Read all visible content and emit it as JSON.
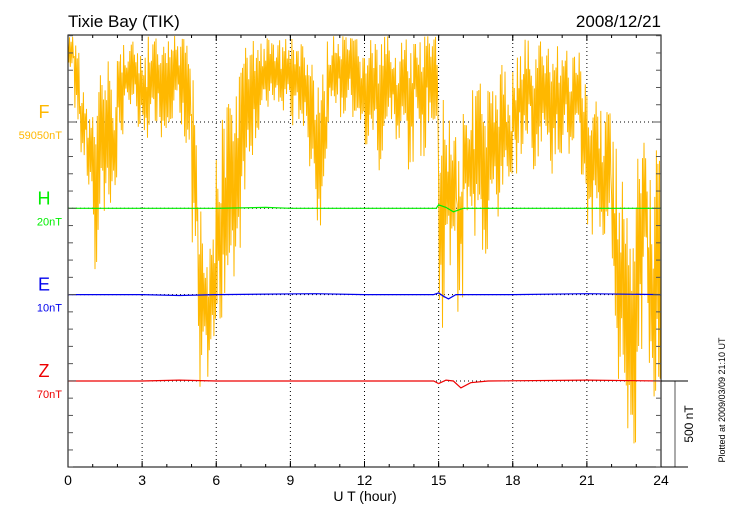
{
  "chart_data": {
    "type": "line",
    "title_left": "Tixie Bay (TIK)",
    "title_right": "2008/12/21",
    "xlabel": "U T (hour)",
    "xlim": [
      0,
      24
    ],
    "xticks": [
      "0",
      "3",
      "6",
      "9",
      "12",
      "15",
      "18",
      "21",
      "24"
    ],
    "scale_bar_label": "500 nT",
    "scale_bar_nT": 500,
    "plotted_note": "Plotted at 2009/03/09 21:10 UT",
    "units_per_axis_tick_nT": 100,
    "series": [
      {
        "name": "F",
        "baseline_label": "59050nT",
        "color": "#ffb800",
        "step_hours": 0.25,
        "ranges": [
          [
            300,
            500
          ],
          [
            0,
            500
          ],
          [
            -200,
            200
          ],
          [
            -400,
            100
          ],
          [
            -950,
            100
          ],
          [
            -600,
            300
          ],
          [
            -500,
            400
          ],
          [
            -450,
            200
          ],
          [
            -100,
            450
          ],
          [
            0,
            500
          ],
          [
            100,
            500
          ],
          [
            -100,
            400
          ],
          [
            -150,
            400
          ],
          [
            -50,
            500
          ],
          [
            0,
            500
          ],
          [
            -100,
            450
          ],
          [
            0,
            500
          ],
          [
            50,
            500
          ],
          [
            -100,
            500
          ],
          [
            -200,
            450
          ],
          [
            -900,
            300
          ],
          [
            -1800,
            -200
          ],
          [
            -1500,
            -700
          ],
          [
            -1400,
            -500
          ],
          [
            -1200,
            -200
          ],
          [
            -1000,
            100
          ],
          [
            -1100,
            200
          ],
          [
            -800,
            300
          ],
          [
            -400,
            450
          ],
          [
            -200,
            500
          ],
          [
            -100,
            500
          ],
          [
            0,
            500
          ],
          [
            50,
            500
          ],
          [
            100,
            500
          ],
          [
            0,
            500
          ],
          [
            100,
            500
          ],
          [
            -50,
            500
          ],
          [
            0,
            500
          ],
          [
            -100,
            450
          ],
          [
            -300,
            400
          ],
          [
            -600,
            200
          ],
          [
            -400,
            300
          ],
          [
            0,
            500
          ],
          [
            100,
            500
          ],
          [
            0,
            500
          ],
          [
            100,
            500
          ],
          [
            0,
            500
          ],
          [
            -100,
            450
          ],
          [
            -200,
            500
          ],
          [
            -100,
            500
          ],
          [
            -300,
            450
          ],
          [
            -100,
            500
          ],
          [
            0,
            500
          ],
          [
            -200,
            450
          ],
          [
            -100,
            500
          ],
          [
            -300,
            400
          ],
          [
            0,
            500
          ],
          [
            -200,
            500
          ],
          [
            0,
            500
          ],
          [
            -100,
            500
          ],
          [
            -1200,
            200
          ],
          [
            -900,
            100
          ],
          [
            -700,
            0
          ],
          [
            -1100,
            -100
          ],
          [
            -600,
            150
          ],
          [
            -700,
            200
          ],
          [
            -500,
            300
          ],
          [
            -800,
            100
          ],
          [
            -500,
            200
          ],
          [
            -600,
            300
          ],
          [
            -400,
            350
          ],
          [
            -500,
            200
          ],
          [
            -300,
            400
          ],
          [
            -200,
            450
          ],
          [
            -100,
            500
          ],
          [
            -300,
            400
          ],
          [
            -200,
            500
          ],
          [
            -100,
            450
          ],
          [
            -300,
            400
          ],
          [
            -200,
            500
          ],
          [
            -100,
            450
          ],
          [
            -300,
            400
          ],
          [
            -200,
            450
          ],
          [
            -400,
            300
          ],
          [
            -700,
            200
          ],
          [
            -500,
            300
          ],
          [
            -800,
            100
          ],
          [
            -600,
            200
          ],
          [
            -1200,
            -100
          ],
          [
            -1500,
            -300
          ],
          [
            -1800,
            -400
          ],
          [
            -2000,
            -600
          ],
          [
            -1400,
            -200
          ],
          [
            -1100,
            0
          ],
          [
            -1800,
            -300
          ],
          [
            -1700,
            -100
          ]
        ]
      },
      {
        "name": "H",
        "baseline_label": "20nT",
        "color": "#00ee00",
        "x": [
          0,
          3,
          6,
          8,
          9,
          12,
          14.9,
          15.0,
          15.3,
          15.6,
          16,
          18,
          21,
          24
        ],
        "y": [
          0,
          0,
          0,
          5,
          0,
          0,
          0,
          20,
          5,
          -20,
          0,
          0,
          0,
          0
        ]
      },
      {
        "name": "E",
        "baseline_label": "10nT",
        "color": "#0000ee",
        "x": [
          0,
          3,
          4.5,
          6,
          10,
          12,
          14.8,
          15.0,
          15.2,
          15.4,
          15.7,
          16,
          18,
          21,
          24
        ],
        "y": [
          0,
          0,
          -5,
          0,
          5,
          0,
          0,
          10,
          -10,
          -25,
          0,
          0,
          0,
          5,
          0
        ]
      },
      {
        "name": "Z",
        "baseline_label": "70nT",
        "color": "#ee0000",
        "x": [
          0,
          3,
          4.5,
          6,
          9,
          12,
          14.8,
          15.0,
          15.3,
          15.6,
          15.9,
          16.3,
          17,
          21,
          24
        ],
        "y": [
          0,
          0,
          5,
          0,
          0,
          0,
          0,
          -15,
          5,
          0,
          -40,
          -10,
          0,
          5,
          0
        ]
      }
    ]
  }
}
